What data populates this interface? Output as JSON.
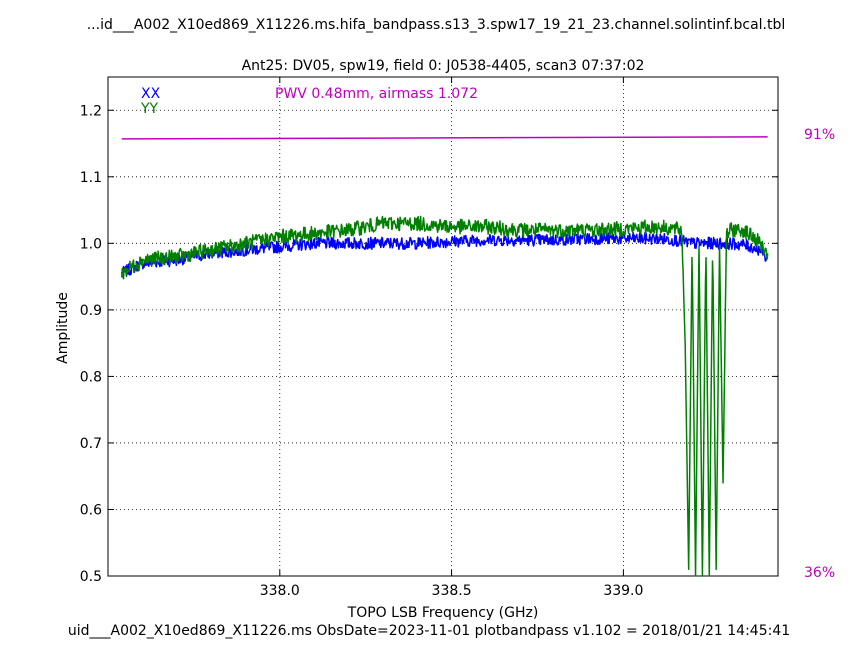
{
  "figure": {
    "suptitle": "...id___A002_X10ed869_X11226.ms.hifa_bandpass.s13_3.spw17_19_21_23.channel.solintinf.bcal.tbl",
    "footer": "uid___A002_X10ed869_X11226.ms  ObsDate=2023-11-01   plotbandpass v1.102 = 2018/01/21 14:45:41"
  },
  "chart_data": {
    "type": "line",
    "title": "Ant25: DV05,  spw19,  field 0: J0538-4405,  scan3  07:37:02",
    "xlabel": "TOPO LSB Frequency (GHz)",
    "ylabel": "Amplitude",
    "xlim": [
      337.5,
      339.45
    ],
    "ylim": [
      0.5,
      1.25
    ],
    "xticks": [
      338.0,
      338.5,
      339.0
    ],
    "xtick_labels": [
      "338.0",
      "338.5",
      "339.0"
    ],
    "yticks": [
      0.5,
      0.6,
      0.7,
      0.8,
      0.9,
      1.0,
      1.1,
      1.2
    ],
    "ytick_labels": [
      "0.5",
      "0.6",
      "0.7",
      "0.8",
      "0.9",
      "1.0",
      "1.1",
      "1.2"
    ],
    "grid": true,
    "annotation": "PWV 0.48mm, airmass 1.072",
    "legend": [
      {
        "label": "XX",
        "color": "#0000ff"
      },
      {
        "label": "YY",
        "color": "#008000"
      }
    ],
    "right_axis": {
      "top_label": "91%",
      "bottom_label": "36%",
      "color": "#bf00bf"
    },
    "series": [
      {
        "name": "XX",
        "color": "#0000ff",
        "x": [
          337.54,
          337.6,
          337.7,
          337.8,
          337.9,
          338.0,
          338.1,
          338.2,
          338.3,
          338.4,
          338.5,
          338.6,
          338.7,
          338.8,
          338.9,
          339.0,
          339.1,
          339.15,
          339.2,
          339.25,
          339.3,
          339.35,
          339.4,
          339.42
        ],
        "y": [
          0.955,
          0.97,
          0.975,
          0.985,
          0.99,
          0.995,
          1.0,
          1.0,
          1.0,
          1.0,
          1.003,
          1.005,
          1.005,
          1.005,
          1.007,
          1.007,
          1.007,
          1.005,
          1.0,
          1.0,
          1.0,
          0.998,
          0.99,
          0.975
        ]
      },
      {
        "name": "YY",
        "color": "#008000",
        "x": [
          337.54,
          337.6,
          337.7,
          337.8,
          337.9,
          338.0,
          338.1,
          338.2,
          338.3,
          338.4,
          338.5,
          338.6,
          338.7,
          338.8,
          338.9,
          339.0,
          339.1,
          339.17,
          339.18,
          339.19,
          339.2,
          339.21,
          339.22,
          339.23,
          339.24,
          339.25,
          339.26,
          339.27,
          339.28,
          339.29,
          339.3,
          339.31,
          339.32,
          339.35,
          339.4,
          339.42
        ],
        "y": [
          0.955,
          0.975,
          0.98,
          0.99,
          1.0,
          1.01,
          1.015,
          1.02,
          1.03,
          1.03,
          1.025,
          1.025,
          1.02,
          1.02,
          1.02,
          1.022,
          1.025,
          1.02,
          0.845,
          0.51,
          1.005,
          0.5,
          1.005,
          0.5,
          1.005,
          0.5,
          1.005,
          0.51,
          1.0,
          0.64,
          1.01,
          1.02,
          1.02,
          1.02,
          1.0,
          0.975
        ]
      },
      {
        "name": "PWV",
        "color": "#bf00bf",
        "x": [
          337.54,
          339.42
        ],
        "y": [
          1.157,
          1.16
        ]
      }
    ]
  }
}
